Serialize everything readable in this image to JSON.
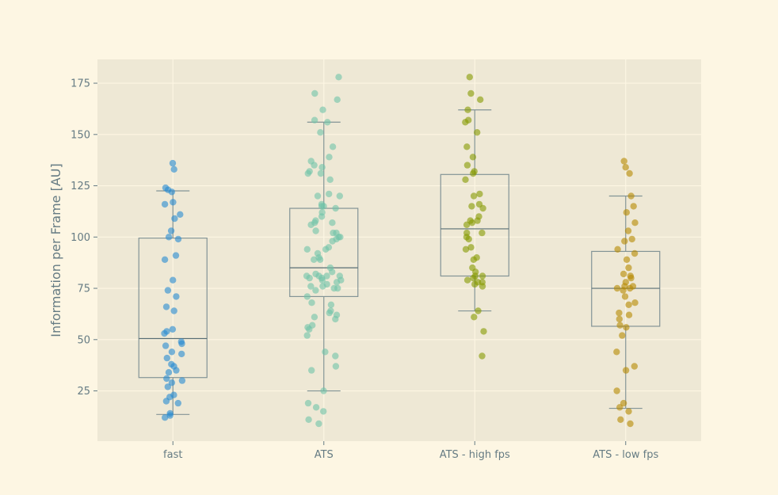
{
  "chart_data": {
    "type": "box-strip",
    "title": "",
    "xlabel": "",
    "ylabel": "Information per Frame [AU]",
    "ylim": [
      0,
      187
    ],
    "yticks": [
      25,
      50,
      75,
      100,
      125,
      150,
      175
    ],
    "grid": true,
    "categories": [
      "fast",
      "ATS",
      "ATS - high fps",
      "ATS - low fps"
    ],
    "colors": {
      "background": "#fdf6e3",
      "plot_area": "#eee8d5",
      "grid": "#fdf6e3",
      "box": "#839496",
      "fast": "#268bd2",
      "ATS": "#6fc3a8",
      "ATS - high fps": "#859900",
      "ATS - low fps": "#b58900"
    },
    "boxes": [
      {
        "name": "fast",
        "whisker_low": 13.5,
        "q1": 31.5,
        "median": 50.5,
        "q3": 99.5,
        "whisker_high": 122.5
      },
      {
        "name": "ATS",
        "whisker_low": 25,
        "q1": 71,
        "median": 85,
        "q3": 114,
        "whisker_high": 156
      },
      {
        "name": "ATS - high fps",
        "whisker_low": 64,
        "q1": 81,
        "median": 104,
        "q3": 130.5,
        "whisker_high": 162
      },
      {
        "name": "ATS - low fps",
        "whisker_low": 16.5,
        "q1": 56.5,
        "median": 75,
        "q3": 93,
        "whisker_high": 120
      }
    ],
    "series": [
      {
        "name": "fast",
        "values": [
          136,
          133,
          124,
          123,
          122,
          117,
          116,
          111,
          109,
          103,
          100,
          99,
          91,
          89,
          79,
          74,
          71,
          66,
          64,
          55,
          54,
          53,
          49,
          48,
          47,
          44,
          43,
          41,
          38,
          37,
          35,
          34,
          31,
          30,
          29,
          27,
          23,
          22,
          20,
          19,
          14,
          13,
          12
        ]
      },
      {
        "name": "ATS",
        "values": [
          178,
          170,
          167,
          162,
          157,
          156,
          151,
          144,
          139,
          137,
          135,
          134,
          132,
          131,
          131,
          128,
          121,
          120,
          120,
          116,
          115,
          115,
          114,
          112,
          110,
          108,
          107,
          107,
          106,
          103,
          102,
          102,
          100,
          100,
          99,
          98,
          95,
          94,
          94,
          92,
          90,
          89,
          89,
          85,
          83,
          82,
          81,
          81,
          81,
          81,
          80,
          80,
          79,
          79,
          78,
          77,
          76,
          76,
          75,
          75,
          74,
          71,
          68,
          67,
          64,
          63,
          62,
          61,
          60,
          57,
          56,
          55,
          52,
          44,
          42,
          37,
          35,
          25,
          19,
          17,
          15,
          11,
          9
        ]
      },
      {
        "name": "ATS - high fps",
        "values": [
          178,
          170,
          167,
          162,
          157,
          156,
          151,
          144,
          139,
          135,
          132,
          131,
          128,
          121,
          120,
          116,
          115,
          114,
          110,
          108,
          108,
          107,
          106,
          102,
          102,
          100,
          99,
          95,
          94,
          90,
          89,
          85,
          83,
          81,
          81,
          80,
          79,
          78,
          78,
          77,
          76,
          64,
          61,
          54,
          42
        ]
      },
      {
        "name": "ATS - low fps",
        "values": [
          137,
          134,
          131,
          120,
          115,
          112,
          107,
          103,
          99,
          98,
          94,
          92,
          89,
          85,
          82,
          81,
          80,
          78,
          76,
          76,
          75,
          75,
          74,
          71,
          68,
          67,
          63,
          62,
          60,
          57,
          56,
          52,
          44,
          37,
          35,
          25,
          19,
          17,
          15,
          11,
          9
        ]
      }
    ]
  }
}
